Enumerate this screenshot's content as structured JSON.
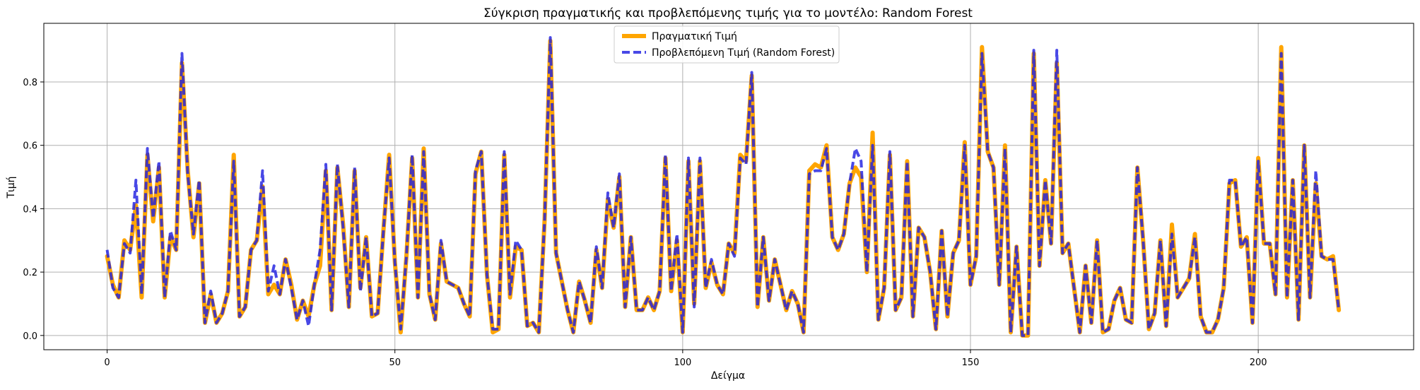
{
  "chart_data": {
    "type": "line",
    "title": "Σύγκριση πραγματικής και προβλεπόμενης τιμής για το μοντέλο: Random Forest",
    "xlabel": "Δείγμα",
    "ylabel": "Τιμή",
    "xlim": [
      -11,
      227
    ],
    "ylim": [
      -0.045,
      0.985
    ],
    "xticks": [
      0,
      50,
      100,
      150,
      200
    ],
    "yticks": [
      0.0,
      0.2,
      0.4,
      0.6,
      0.8
    ],
    "xtick_labels": [
      "0",
      "50",
      "100",
      "150",
      "200"
    ],
    "ytick_labels": [
      "0.0",
      "0.2",
      "0.4",
      "0.6",
      "0.8"
    ],
    "grid": true,
    "legend_position": "top-center",
    "series": [
      {
        "name": "Πραγματική Τιμή",
        "color": "#FFA500",
        "style": "solid",
        "values": [
          0.25,
          0.16,
          0.12,
          0.3,
          0.27,
          0.41,
          0.12,
          0.57,
          0.36,
          0.53,
          0.12,
          0.31,
          0.27,
          0.86,
          0.52,
          0.31,
          0.48,
          0.04,
          0.13,
          0.04,
          0.07,
          0.14,
          0.57,
          0.06,
          0.09,
          0.27,
          0.3,
          0.47,
          0.13,
          0.16,
          0.13,
          0.24,
          0.16,
          0.05,
          0.11,
          0.06,
          0.16,
          0.22,
          0.52,
          0.08,
          0.53,
          0.35,
          0.09,
          0.52,
          0.15,
          0.31,
          0.06,
          0.07,
          0.33,
          0.57,
          0.23,
          0.01,
          0.25,
          0.56,
          0.12,
          0.59,
          0.13,
          0.05,
          0.29,
          0.17,
          0.16,
          0.15,
          0.1,
          0.06,
          0.51,
          0.58,
          0.19,
          0.01,
          0.02,
          0.57,
          0.12,
          0.28,
          0.27,
          0.03,
          0.04,
          0.01,
          0.36,
          0.93,
          0.26,
          0.17,
          0.08,
          0.01,
          0.17,
          0.11,
          0.04,
          0.27,
          0.15,
          0.43,
          0.34,
          0.5,
          0.09,
          0.31,
          0.08,
          0.08,
          0.12,
          0.08,
          0.14,
          0.56,
          0.14,
          0.3,
          0.01,
          0.55,
          0.1,
          0.55,
          0.15,
          0.23,
          0.16,
          0.13,
          0.29,
          0.26,
          0.57,
          0.55,
          0.82,
          0.09,
          0.31,
          0.11,
          0.24,
          0.16,
          0.08,
          0.14,
          0.1,
          0.01,
          0.52,
          0.54,
          0.53,
          0.6,
          0.31,
          0.27,
          0.32,
          0.48,
          0.53,
          0.5,
          0.2,
          0.64,
          0.05,
          0.15,
          0.57,
          0.08,
          0.12,
          0.55,
          0.06,
          0.34,
          0.31,
          0.2,
          0.02,
          0.33,
          0.06,
          0.26,
          0.3,
          0.61,
          0.16,
          0.25,
          0.91,
          0.58,
          0.53,
          0.16,
          0.6,
          0.01,
          0.28,
          0.0,
          0.0,
          0.89,
          0.22,
          0.49,
          0.29,
          0.86,
          0.26,
          0.29,
          0.15,
          0.01,
          0.22,
          0.04,
          0.3,
          0.01,
          0.02,
          0.11,
          0.15,
          0.05,
          0.04,
          0.53,
          0.3,
          0.02,
          0.07,
          0.3,
          0.03,
          0.35,
          0.12,
          0.15,
          0.18,
          0.32,
          0.06,
          0.01,
          0.01,
          0.05,
          0.15,
          0.48,
          0.49,
          0.28,
          0.31,
          0.04,
          0.56,
          0.29,
          0.29,
          0.13,
          0.91,
          0.12,
          0.49,
          0.05,
          0.6,
          0.12,
          0.48,
          0.25,
          0.24,
          0.25,
          0.08
        ]
      },
      {
        "name": "Προβλεπόμενη Τιμή (Random Forest)",
        "color": "#2020E0",
        "style": "dashed",
        "values": [
          0.27,
          0.15,
          0.12,
          0.29,
          0.26,
          0.49,
          0.13,
          0.59,
          0.37,
          0.55,
          0.12,
          0.33,
          0.27,
          0.89,
          0.51,
          0.32,
          0.49,
          0.04,
          0.14,
          0.04,
          0.07,
          0.14,
          0.55,
          0.06,
          0.09,
          0.27,
          0.3,
          0.52,
          0.14,
          0.22,
          0.13,
          0.24,
          0.15,
          0.05,
          0.11,
          0.03,
          0.16,
          0.27,
          0.54,
          0.08,
          0.54,
          0.34,
          0.09,
          0.53,
          0.14,
          0.31,
          0.06,
          0.07,
          0.33,
          0.56,
          0.23,
          0.02,
          0.25,
          0.57,
          0.12,
          0.58,
          0.13,
          0.05,
          0.3,
          0.17,
          0.16,
          0.15,
          0.1,
          0.06,
          0.52,
          0.58,
          0.19,
          0.02,
          0.02,
          0.58,
          0.13,
          0.3,
          0.27,
          0.03,
          0.04,
          0.01,
          0.36,
          0.94,
          0.26,
          0.17,
          0.08,
          0.01,
          0.17,
          0.11,
          0.04,
          0.28,
          0.15,
          0.45,
          0.34,
          0.51,
          0.09,
          0.31,
          0.08,
          0.08,
          0.12,
          0.08,
          0.14,
          0.57,
          0.14,
          0.32,
          0.01,
          0.56,
          0.09,
          0.56,
          0.15,
          0.24,
          0.16,
          0.13,
          0.29,
          0.25,
          0.56,
          0.54,
          0.83,
          0.09,
          0.31,
          0.11,
          0.24,
          0.16,
          0.08,
          0.14,
          0.1,
          0.01,
          0.51,
          0.52,
          0.52,
          0.59,
          0.31,
          0.27,
          0.32,
          0.48,
          0.59,
          0.55,
          0.2,
          0.6,
          0.05,
          0.15,
          0.58,
          0.08,
          0.12,
          0.55,
          0.06,
          0.34,
          0.31,
          0.2,
          0.02,
          0.33,
          0.06,
          0.26,
          0.3,
          0.6,
          0.16,
          0.25,
          0.89,
          0.58,
          0.53,
          0.16,
          0.59,
          0.01,
          0.28,
          0.0,
          0.0,
          0.9,
          0.22,
          0.49,
          0.29,
          0.9,
          0.26,
          0.29,
          0.15,
          0.01,
          0.22,
          0.04,
          0.3,
          0.01,
          0.02,
          0.11,
          0.15,
          0.05,
          0.04,
          0.53,
          0.3,
          0.02,
          0.07,
          0.3,
          0.03,
          0.32,
          0.12,
          0.15,
          0.18,
          0.31,
          0.06,
          0.01,
          0.01,
          0.05,
          0.15,
          0.49,
          0.49,
          0.28,
          0.31,
          0.04,
          0.55,
          0.29,
          0.29,
          0.13,
          0.89,
          0.12,
          0.49,
          0.05,
          0.6,
          0.12,
          0.52,
          0.25,
          0.24,
          0.24,
          0.08
        ]
      }
    ]
  }
}
